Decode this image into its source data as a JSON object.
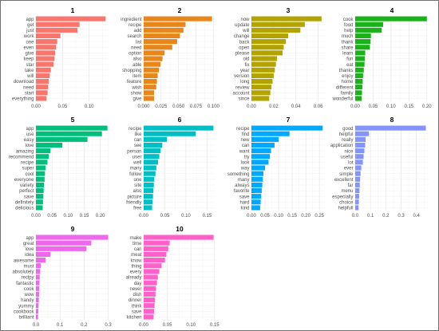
{
  "chart_data": [
    {
      "type": "bar",
      "title": "1",
      "color": "#F8766D",
      "categories": [
        "app",
        "get",
        "just",
        "work",
        "one",
        "even",
        "give",
        "keep",
        "star",
        "take",
        "will",
        "download",
        "need",
        "start",
        "everything"
      ],
      "values": [
        0.131,
        0.082,
        0.078,
        0.046,
        0.04,
        0.038,
        0.036,
        0.035,
        0.033,
        0.028,
        0.026,
        0.024,
        0.023,
        0.022,
        0.02
      ],
      "ticks": [
        "0.00",
        "0.05",
        "0.10"
      ],
      "tick_values": [
        0,
        0.05,
        0.1
      ],
      "xlim": [
        0,
        0.138
      ]
    },
    {
      "type": "bar",
      "title": "2",
      "color": "#E7861B",
      "categories": [
        "ingredient",
        "recipe",
        "add",
        "search",
        "list",
        "need",
        "option",
        "also",
        "able",
        "shopping",
        "item",
        "feature",
        "wish",
        "show",
        "give"
      ],
      "values": [
        0.098,
        0.06,
        0.057,
        0.052,
        0.048,
        0.041,
        0.03,
        0.027,
        0.024,
        0.022,
        0.02,
        0.019,
        0.018,
        0.015,
        0.015
      ],
      "ticks": [
        "0.000",
        "0.025",
        "0.050",
        "0.075",
        "0.100"
      ],
      "tick_values": [
        0,
        0.025,
        0.05,
        0.075,
        0.1
      ],
      "xlim": [
        0,
        0.103
      ]
    },
    {
      "type": "bar",
      "title": "3",
      "color": "#B2A300",
      "categories": [
        "now",
        "update",
        "will",
        "change",
        "back",
        "open",
        "please",
        "old",
        "fix",
        "year",
        "version",
        "long",
        "review",
        "account",
        "since"
      ],
      "values": [
        0.063,
        0.048,
        0.044,
        0.033,
        0.031,
        0.029,
        0.028,
        0.023,
        0.022,
        0.021,
        0.02,
        0.019,
        0.018,
        0.017,
        0.016
      ],
      "ticks": [
        "0.00",
        "0.02",
        "0.04",
        "0.06"
      ],
      "tick_values": [
        0,
        0.02,
        0.04,
        0.06
      ],
      "xlim": [
        0,
        0.066
      ]
    },
    {
      "type": "bar",
      "title": "4",
      "color": "#1BB11B",
      "categories": [
        "cook",
        "food",
        "help",
        "much",
        "thank",
        "share",
        "learn",
        "fun",
        "eat",
        "thanks",
        "enjoy",
        "home",
        "different",
        "family",
        "wonderful"
      ],
      "values": [
        0.2,
        0.078,
        0.074,
        0.044,
        0.043,
        0.041,
        0.028,
        0.027,
        0.026,
        0.024,
        0.022,
        0.021,
        0.02,
        0.019,
        0.018
      ],
      "ticks": [
        "0.00",
        "0.05",
        "0.10",
        "0.15",
        "0.20"
      ],
      "tick_values": [
        0,
        0.05,
        0.1,
        0.15,
        0.2
      ],
      "xlim": [
        0,
        0.205
      ]
    },
    {
      "type": "bar",
      "title": "5",
      "color": "#00BF7D",
      "categories": [
        "app",
        "use",
        "easy",
        "love",
        "amazing",
        "recommend",
        "recipe",
        "super",
        "cool",
        "everyone",
        "variety",
        "perfect",
        "save",
        "definitely",
        "delicious"
      ],
      "values": [
        0.222,
        0.205,
        0.16,
        0.082,
        0.045,
        0.04,
        0.036,
        0.03,
        0.028,
        0.027,
        0.025,
        0.024,
        0.023,
        0.022,
        0.021
      ],
      "ticks": [
        "0.00",
        "0.05",
        "0.10",
        "0.15",
        "0.20"
      ],
      "tick_values": [
        0,
        0.05,
        0.1,
        0.15,
        0.2
      ],
      "xlim": [
        0,
        0.228
      ]
    },
    {
      "type": "bar",
      "title": "6",
      "color": "#00BFC4",
      "categories": [
        "recipe",
        "like",
        "can",
        "see",
        "person",
        "user",
        "well",
        "many",
        "follow",
        "one",
        "site",
        "also",
        "picture",
        "friendly",
        "free"
      ],
      "values": [
        0.165,
        0.123,
        0.055,
        0.044,
        0.04,
        0.037,
        0.034,
        0.03,
        0.028,
        0.025,
        0.024,
        0.023,
        0.022,
        0.021,
        0.02
      ],
      "ticks": [
        "0.00",
        "0.05",
        "0.10",
        "0.15"
      ],
      "tick_values": [
        0,
        0.05,
        0.1,
        0.15
      ],
      "xlim": [
        0,
        0.17
      ]
    },
    {
      "type": "bar",
      "title": "7",
      "color": "#00A9FF",
      "categories": [
        "recipe",
        "find",
        "new",
        "can",
        "want",
        "try",
        "look",
        "way",
        "something",
        "many",
        "always",
        "favorite",
        "save",
        "hard",
        "kind"
      ],
      "values": [
        0.262,
        0.14,
        0.1,
        0.085,
        0.072,
        0.068,
        0.063,
        0.05,
        0.044,
        0.042,
        0.04,
        0.038,
        0.036,
        0.034,
        0.032
      ],
      "ticks": [
        "0.00",
        "0.05",
        "0.10",
        "0.15",
        "0.20",
        "0.25"
      ],
      "tick_values": [
        0,
        0.05,
        0.1,
        0.15,
        0.2,
        0.25
      ],
      "xlim": [
        0,
        0.27
      ]
    },
    {
      "type": "bar",
      "title": "8",
      "color": "#8494FF",
      "categories": [
        "good",
        "helpful",
        "really",
        "application",
        "nice",
        "useful",
        "lot",
        "ever",
        "simple",
        "excellent",
        "far",
        "menu",
        "especially",
        "choice",
        "helpfull"
      ],
      "values": [
        0.462,
        0.09,
        0.068,
        0.065,
        0.06,
        0.055,
        0.05,
        0.04,
        0.035,
        0.032,
        0.03,
        0.028,
        0.026,
        0.024,
        0.022
      ],
      "ticks": [
        "0.0",
        "0.1",
        "0.2",
        "0.3",
        "0.4"
      ],
      "tick_values": [
        0,
        0.1,
        0.2,
        0.3,
        0.4
      ],
      "xlim": [
        0,
        0.48
      ]
    },
    {
      "type": "bar",
      "title": "9",
      "color": "#ED68ED",
      "categories": [
        "app",
        "great",
        "love",
        "idea",
        "awesome",
        "must",
        "absolutely",
        "recipy",
        "fantastic",
        "cook",
        "wow",
        "handy",
        "yummy",
        "cookbook",
        "brilliant"
      ],
      "values": [
        0.3,
        0.23,
        0.21,
        0.06,
        0.04,
        0.02,
        0.018,
        0.016,
        0.015,
        0.014,
        0.013,
        0.012,
        0.011,
        0.01,
        0.009
      ],
      "ticks": [
        "0.0",
        "0.1",
        "0.2",
        "0.3"
      ],
      "tick_values": [
        0,
        0.1,
        0.2,
        0.3
      ],
      "xlim": [
        0,
        0.305
      ]
    },
    {
      "type": "bar",
      "title": "10",
      "color": "#FF61C9",
      "categories": [
        "make",
        "time",
        "can",
        "meat",
        "know",
        "thing",
        "every",
        "already",
        "day",
        "never",
        "dish",
        "dinner",
        "think",
        "save",
        "kitchen"
      ],
      "values": [
        0.148,
        0.055,
        0.052,
        0.048,
        0.045,
        0.038,
        0.033,
        0.03,
        0.028,
        0.026,
        0.025,
        0.024,
        0.023,
        0.022,
        0.021
      ],
      "ticks": [
        "0.00",
        "0.05",
        "0.10",
        "0.15"
      ],
      "tick_values": [
        0,
        0.05,
        0.1,
        0.15
      ],
      "xlim": [
        0,
        0.152
      ]
    }
  ]
}
